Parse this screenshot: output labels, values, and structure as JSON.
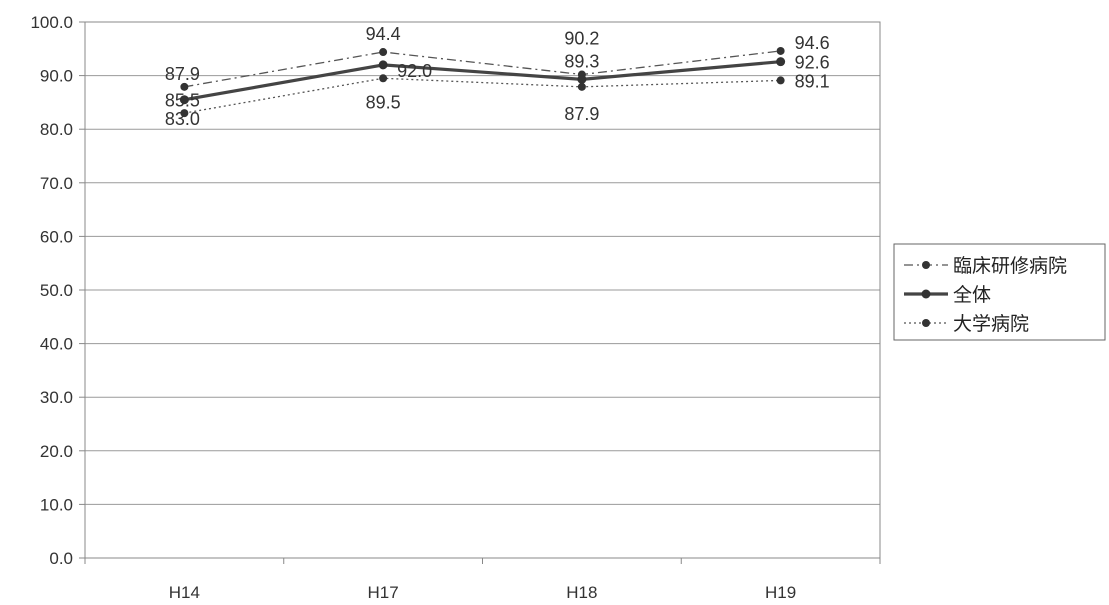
{
  "chart_data": {
    "type": "line",
    "categories": [
      "H14",
      "H17",
      "H18",
      "H19"
    ],
    "ylim": [
      0,
      100
    ],
    "yticks": [
      "0.0",
      "10.0",
      "20.0",
      "30.0",
      "40.0",
      "50.0",
      "60.0",
      "70.0",
      "80.0",
      "90.0",
      "100.0"
    ],
    "grid": true,
    "legend_position": "right",
    "series": [
      {
        "name": "臨床研修病院",
        "values": [
          87.9,
          94.4,
          90.2,
          94.6
        ],
        "labels": [
          "87.9",
          "94.4",
          "90.2",
          "94.6"
        ],
        "style": "dash-dot",
        "color": "#555555"
      },
      {
        "name": "全体",
        "values": [
          85.5,
          92.0,
          89.3,
          92.6
        ],
        "labels": [
          "85.5",
          "92.0",
          "89.3",
          "92.6"
        ],
        "style": "solid-bold",
        "color": "#444444"
      },
      {
        "name": "大学病院",
        "values": [
          83.0,
          89.5,
          87.9,
          89.1
        ],
        "labels": [
          "83.0",
          "89.5",
          "87.9",
          "89.1"
        ],
        "style": "dotted",
        "color": "#555555"
      }
    ]
  }
}
